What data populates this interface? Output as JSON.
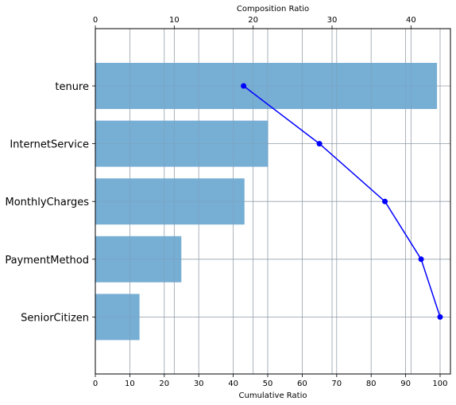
{
  "chart_data": {
    "type": "bar",
    "orientation": "horizontal",
    "categories": [
      "tenure",
      "InternetService",
      "MonthlyCharges",
      "PaymentMethod",
      "SeniorCitizen"
    ],
    "series": [
      {
        "axis": "top",
        "type": "bar",
        "values": [
          43.3,
          21.9,
          18.9,
          10.9,
          5.6
        ],
        "color": "#77aed4"
      },
      {
        "axis": "bottom",
        "type": "line",
        "values": [
          43,
          65,
          84,
          94.5,
          100
        ],
        "color": "#0000ff"
      }
    ],
    "xlabel_bottom": "Cumulative Ratio",
    "xlabel_top": "Composition Ratio",
    "xlim_bottom": [
      0,
      103
    ],
    "xlim_top": [
      0,
      45
    ],
    "xticks_bottom": [
      0,
      10,
      20,
      30,
      40,
      50,
      60,
      70,
      80,
      90,
      100
    ],
    "xticks_top": [
      0,
      10,
      20,
      30,
      40
    ],
    "grid": true
  }
}
